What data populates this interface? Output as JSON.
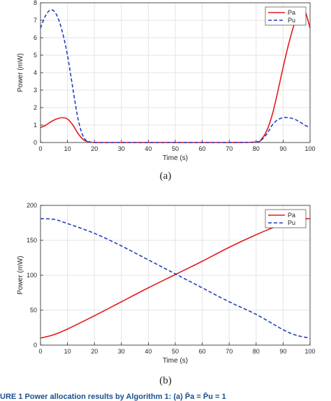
{
  "chart_data": [
    {
      "type": "line",
      "panel_label": "(a)",
      "xlabel": "Time (s)",
      "ylabel": "Power (mW)",
      "xlim": [
        0,
        100
      ],
      "ylim": [
        0,
        8
      ],
      "xticks": [
        0,
        10,
        20,
        30,
        40,
        50,
        60,
        70,
        80,
        90,
        100
      ],
      "yticks": [
        0,
        1,
        2,
        3,
        4,
        5,
        6,
        7,
        8
      ],
      "grid": true,
      "legend_position": "top-right",
      "x": [
        0,
        2,
        4,
        6,
        8,
        10,
        12,
        14,
        16,
        18,
        20,
        25,
        30,
        40,
        50,
        60,
        70,
        80,
        82,
        84,
        86,
        88,
        90,
        92,
        94,
        96,
        98,
        100
      ],
      "series": [
        {
          "name": "Pa",
          "color": "#e41a1c",
          "style": "solid",
          "values": [
            0.85,
            1.0,
            1.2,
            1.35,
            1.42,
            1.35,
            1.0,
            0.5,
            0.15,
            0.03,
            0.0,
            0.0,
            0.0,
            0.0,
            0.0,
            0.0,
            0.0,
            0.03,
            0.2,
            0.7,
            1.6,
            2.9,
            4.3,
            5.6,
            6.7,
            7.4,
            7.55,
            6.55
          ]
        },
        {
          "name": "Pu",
          "color": "#1f3fbf",
          "style": "dashed",
          "values": [
            6.55,
            7.3,
            7.6,
            7.3,
            6.4,
            5.0,
            3.1,
            1.3,
            0.3,
            0.05,
            0.0,
            0.0,
            0.0,
            0.0,
            0.0,
            0.0,
            0.0,
            0.02,
            0.15,
            0.5,
            1.0,
            1.3,
            1.42,
            1.42,
            1.35,
            1.2,
            1.0,
            0.85
          ]
        }
      ]
    },
    {
      "type": "line",
      "panel_label": "(b)",
      "xlabel": "Time (s)",
      "ylabel": "Power (mW)",
      "xlim": [
        0,
        100
      ],
      "ylim": [
        0,
        200
      ],
      "xticks": [
        0,
        10,
        20,
        30,
        40,
        50,
        60,
        70,
        80,
        90,
        100
      ],
      "yticks": [
        0,
        50,
        100,
        150,
        200
      ],
      "grid": true,
      "legend_position": "top-right",
      "x": [
        0,
        5,
        10,
        20,
        30,
        40,
        50,
        60,
        70,
        80,
        90,
        95,
        100
      ],
      "series": [
        {
          "name": "Pa",
          "color": "#e41a1c",
          "style": "solid",
          "values": [
            10,
            15,
            23,
            42,
            62,
            82,
            101,
            120,
            140,
            158,
            174,
            180,
            181
          ]
        },
        {
          "name": "Pu",
          "color": "#1f3fbf",
          "style": "dashed",
          "values": [
            181,
            180,
            174,
            160,
            142,
            122,
            102,
            82,
            62,
            44,
            22,
            14,
            10
          ]
        }
      ]
    }
  ],
  "captions": {
    "a": "(a)",
    "b": "(b)"
  },
  "bottom_text": "URE 1   Power allocation results by Algorithm 1: (a) P̄a = P̄u = 1"
}
